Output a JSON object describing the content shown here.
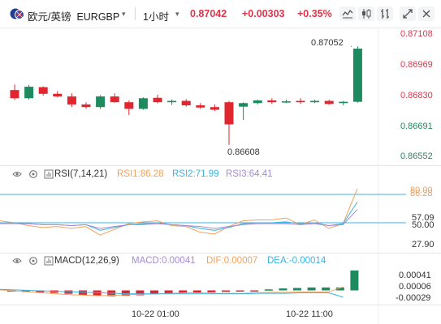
{
  "header": {
    "symbol_cn": "欧元/英镑",
    "symbol_code": "EURGBP",
    "timeframe": "1小时",
    "last_price": "0.87042",
    "change": "+0.00303",
    "change_pct": "+0.35%"
  },
  "price_axis": {
    "ticks": [
      "0.87108",
      "0.86969",
      "0.86830",
      "0.86691",
      "0.86552"
    ],
    "high_label": "0.87052",
    "low_label": "0.86608"
  },
  "rsi": {
    "label": "RSI(7,14,21)",
    "rsi1": "RSI1:86.28",
    "rsi2": "RSI2:71.99",
    "rsi3": "RSI3:64.41",
    "ticks": [
      "86.28",
      "57.09",
      "50.00",
      "27.90"
    ],
    "tick_top": "80.00",
    "colors": {
      "rsi1": "#f5a15a",
      "rsi2": "#3db3e0",
      "rsi3": "#a58ad6"
    }
  },
  "macd": {
    "label": "MACD(12,26,9)",
    "macd_val": "MACD:0.00041",
    "dif": "DIF:0.00007",
    "dea": "DEA:-0.00014",
    "ticks": [
      "0.00041",
      "0.00006",
      "-0.00029"
    ],
    "colors": {
      "macd": "#a58ad6",
      "dif": "#f5a15a",
      "dea": "#3db3e0"
    }
  },
  "time_axis": {
    "labels": [
      "10-22 01:00",
      "10-22 11:00"
    ]
  },
  "colors": {
    "up": "#1e8a5f",
    "down": "#e0262f",
    "accent": "#e0344a"
  },
  "icons": [
    "uk-flag-icon",
    "caret-down-icon",
    "line-chart-icon",
    "candle-chart-icon",
    "bar-chart-icon",
    "expand-icon",
    "close-icon"
  ],
  "candles": [
    {
      "o": 0.86855,
      "h": 0.8688,
      "l": 0.8681,
      "c": 0.86818
    },
    {
      "o": 0.86818,
      "h": 0.86878,
      "l": 0.86812,
      "c": 0.8687
    },
    {
      "o": 0.86868,
      "h": 0.86872,
      "l": 0.8683,
      "c": 0.86838
    },
    {
      "o": 0.86838,
      "h": 0.8685,
      "l": 0.86822,
      "c": 0.86826
    },
    {
      "o": 0.86826,
      "h": 0.8684,
      "l": 0.86778,
      "c": 0.8679
    },
    {
      "o": 0.8679,
      "h": 0.868,
      "l": 0.8677,
      "c": 0.86778
    },
    {
      "o": 0.86778,
      "h": 0.86832,
      "l": 0.8677,
      "c": 0.86826
    },
    {
      "o": 0.86826,
      "h": 0.8684,
      "l": 0.86798,
      "c": 0.868
    },
    {
      "o": 0.868,
      "h": 0.86808,
      "l": 0.86742,
      "c": 0.8677
    },
    {
      "o": 0.8677,
      "h": 0.86822,
      "l": 0.86766,
      "c": 0.86818
    },
    {
      "o": 0.8682,
      "h": 0.86834,
      "l": 0.86795,
      "c": 0.868
    },
    {
      "o": 0.868,
      "h": 0.86812,
      "l": 0.86788,
      "c": 0.86806
    },
    {
      "o": 0.86806,
      "h": 0.86814,
      "l": 0.8678,
      "c": 0.86786
    },
    {
      "o": 0.86786,
      "h": 0.86796,
      "l": 0.8677,
      "c": 0.86776
    },
    {
      "o": 0.86778,
      "h": 0.8679,
      "l": 0.8676,
      "c": 0.86766
    },
    {
      "o": 0.868,
      "h": 0.86806,
      "l": 0.86608,
      "c": 0.867
    },
    {
      "o": 0.8678,
      "h": 0.868,
      "l": 0.8672,
      "c": 0.86796
    },
    {
      "o": 0.86796,
      "h": 0.86812,
      "l": 0.8679,
      "c": 0.86808
    },
    {
      "o": 0.86808,
      "h": 0.86818,
      "l": 0.86792,
      "c": 0.868
    },
    {
      "o": 0.868,
      "h": 0.86812,
      "l": 0.86796,
      "c": 0.86804
    },
    {
      "o": 0.86806,
      "h": 0.86818,
      "l": 0.86792,
      "c": 0.868
    },
    {
      "o": 0.868,
      "h": 0.86812,
      "l": 0.86796,
      "c": 0.86806
    },
    {
      "o": 0.86806,
      "h": 0.86812,
      "l": 0.86788,
      "c": 0.86792
    },
    {
      "o": 0.86796,
      "h": 0.86806,
      "l": 0.86786,
      "c": 0.86802
    },
    {
      "o": 0.86802,
      "h": 0.87052,
      "l": 0.86798,
      "c": 0.87042
    }
  ]
}
